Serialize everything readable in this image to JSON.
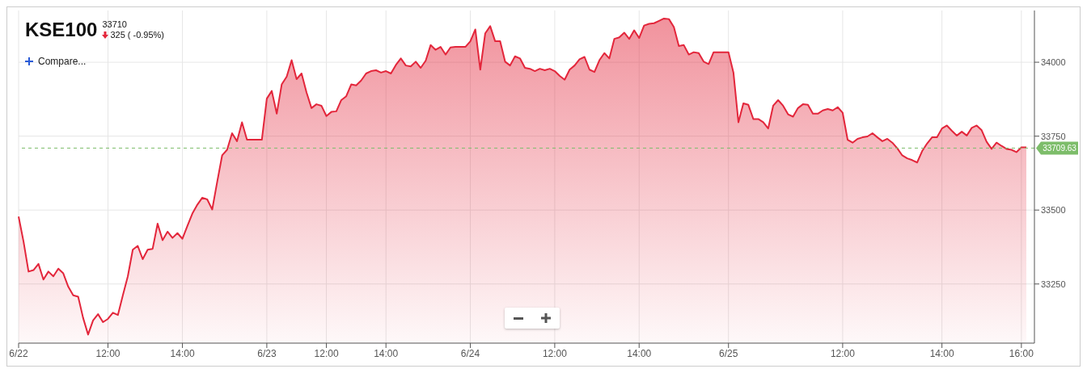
{
  "chart_data": {
    "type": "area",
    "title": "KSE100",
    "subtitle": "33710",
    "annotations": [
      "325 ( -0.95%)",
      "Compare..."
    ],
    "categories": [
      "6/22",
      null,
      null,
      null,
      null,
      null,
      null,
      null,
      null,
      null,
      null,
      null,
      null,
      null,
      null,
      null,
      null,
      null,
      "12:00",
      null,
      null,
      null,
      null,
      null,
      null,
      null,
      null,
      null,
      null,
      null,
      null,
      null,
      null,
      "14:00",
      null,
      null,
      null,
      null,
      null,
      null,
      null,
      null,
      null,
      null,
      null,
      null,
      null,
      null,
      null,
      null,
      "6/23",
      null,
      null,
      null,
      null,
      null,
      null,
      null,
      null,
      null,
      null,
      null,
      "12:00",
      null,
      null,
      null,
      null,
      null,
      null,
      null,
      null,
      null,
      null,
      null,
      "14:00",
      null,
      null,
      null,
      null,
      null,
      null,
      null,
      null,
      null,
      null,
      null,
      null,
      null,
      null,
      null,
      null,
      "6/24",
      null,
      null,
      null,
      null,
      null,
      null,
      null,
      null,
      null,
      null,
      null,
      null,
      null,
      null,
      null,
      null,
      "12:00",
      null,
      null,
      null,
      null,
      null,
      null,
      null,
      null,
      null,
      null,
      null,
      null,
      null,
      null,
      null,
      null,
      "14:00",
      null,
      null,
      null,
      null,
      null,
      null,
      null,
      null,
      null,
      null,
      null,
      null,
      null,
      null,
      null,
      null,
      null,
      "6/25",
      null,
      null,
      null,
      null,
      null,
      null,
      null,
      null,
      null,
      null,
      null,
      null,
      null,
      null,
      null,
      null,
      null,
      null,
      null,
      null,
      null,
      null,
      "12:00",
      null,
      null,
      null,
      null,
      null,
      null,
      null,
      null,
      null,
      null,
      null,
      null,
      null,
      null,
      null,
      null,
      null,
      null,
      null,
      "14:00",
      null,
      null,
      null,
      null,
      null,
      null,
      null,
      null,
      null,
      null,
      null,
      null,
      null,
      null,
      null,
      "16:00",
      null
    ],
    "series": [
      {
        "color": "#e3263b",
        "values": [
          33478,
          33393,
          33292,
          33297,
          33318,
          33265,
          33292,
          33276,
          33302,
          33286,
          33241,
          33212,
          33207,
          33135,
          33079,
          33127,
          33148,
          33121,
          33132,
          33153,
          33145,
          33212,
          33276,
          33366,
          33379,
          33334,
          33366,
          33369,
          33454,
          33398,
          33427,
          33406,
          33422,
          33403,
          33446,
          33488,
          33518,
          33542,
          33536,
          33502,
          33595,
          33685,
          33704,
          33760,
          33733,
          33797,
          33738,
          33738,
          33738,
          33738,
          33877,
          33903,
          33826,
          33925,
          33951,
          34007,
          33943,
          33962,
          33898,
          33845,
          33858,
          33853,
          33818,
          33832,
          33834,
          33872,
          33885,
          33925,
          33922,
          33938,
          33962,
          33970,
          33973,
          33965,
          33970,
          33962,
          33991,
          34013,
          33989,
          33986,
          34002,
          33981,
          34005,
          34058,
          34042,
          34052,
          34026,
          34050,
          34052,
          34052,
          34052,
          34071,
          34111,
          33975,
          34098,
          34122,
          34071,
          34071,
          34002,
          33989,
          34020,
          34013,
          33981,
          33978,
          33970,
          33978,
          33973,
          33978,
          33970,
          33954,
          33941,
          33975,
          33989,
          34010,
          34018,
          33975,
          33967,
          34007,
          34031,
          34013,
          34079,
          34084,
          34100,
          34079,
          34108,
          34082,
          34124,
          34130,
          34132,
          34140,
          34148,
          34146,
          34119,
          34055,
          34058,
          34026,
          34034,
          34031,
          34002,
          33994,
          34034,
          34034,
          34034,
          34034,
          33965,
          33797,
          33861,
          33856,
          33808,
          33808,
          33797,
          33776,
          33853,
          33872,
          33853,
          33824,
          33816,
          33845,
          33858,
          33856,
          33826,
          33826,
          33837,
          33842,
          33837,
          33848,
          33829,
          33738,
          33728,
          33741,
          33746,
          33749,
          33760,
          33746,
          33733,
          33741,
          33728,
          33709,
          33685,
          33675,
          33669,
          33661,
          33699,
          33725,
          33746,
          33746,
          33776,
          33786,
          33768,
          33752,
          33765,
          33752,
          33778,
          33786,
          33770,
          33731,
          33707,
          33728,
          33717,
          33707,
          33704,
          33696,
          33712,
          33712
        ]
      }
    ],
    "ylim": [
      33050,
      34175
    ],
    "yticks": [
      33250,
      33500,
      33750,
      34000
    ],
    "grid": true,
    "ref_lines": [
      {
        "axis": "y",
        "value": 33709.63,
        "label": "33709.63",
        "color": "#7dbd6a",
        "line_style": "dashed"
      }
    ]
  }
}
